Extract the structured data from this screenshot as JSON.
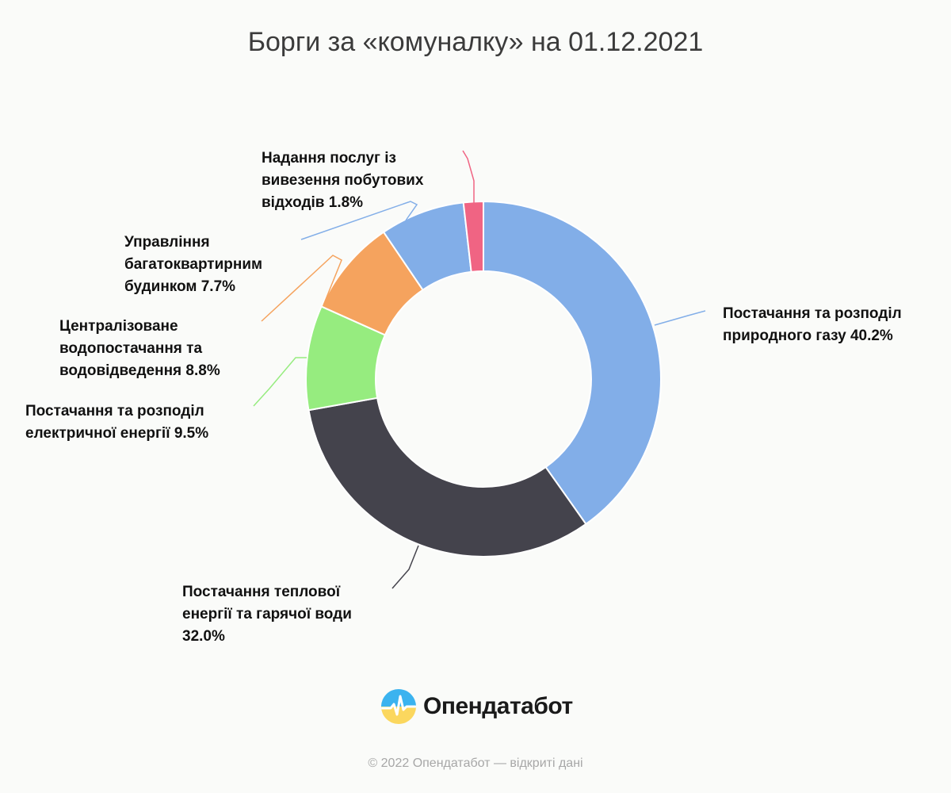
{
  "chart_data": {
    "type": "pie",
    "title": "Борги за «комуналку» на 01.12.2021",
    "slices": [
      {
        "label": [
          "Постачання та розподіл",
          "природного газу 40.2%"
        ],
        "value": 40.2,
        "color": "#82aee8"
      },
      {
        "label": [
          "Постачання теплової",
          "енергії та гарячої води",
          "32.0%"
        ],
        "value": 32.0,
        "color": "#44434c"
      },
      {
        "label": [
          "Постачання та розподіл",
          "електричної енергії 9.5%"
        ],
        "value": 9.5,
        "color": "#96ec7f"
      },
      {
        "label": [
          "Централізоване",
          "водопостачання та",
          "водовідведення 8.8%"
        ],
        "value": 8.8,
        "color": "#f5a35e"
      },
      {
        "label": [
          "Управління",
          "багатоквартирним",
          "будинком 7.7%"
        ],
        "value": 7.7,
        "color": "#82aee8"
      },
      {
        "label": [
          "Надання послуг із",
          "вивезення побутових",
          "відходів 1.8%"
        ],
        "value": 1.8,
        "color": "#f06483"
      }
    ]
  },
  "brand": {
    "name": "Опендатабот",
    "logo_icon": "opendatabot-logo-icon"
  },
  "footer": {
    "text": "© 2022 Опендатабот — відкриті дані"
  }
}
